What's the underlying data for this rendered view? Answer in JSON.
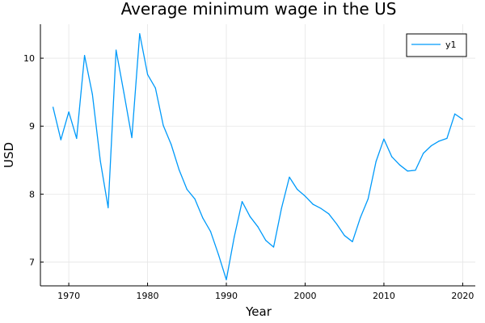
{
  "colors": {
    "series": "#009AFA",
    "grid": "#e6e6e6",
    "axis": "#000000",
    "background": "#ffffff"
  },
  "chart_data": {
    "type": "line",
    "title": "Average minimum wage in the US",
    "xlabel": "Year",
    "ylabel": "USD",
    "xlim": [
      1966.4,
      2021.6
    ],
    "ylim": [
      6.65,
      10.5
    ],
    "xticks": [
      1970,
      1980,
      1990,
      2000,
      2010,
      2020
    ],
    "yticks": [
      7,
      8,
      9,
      10
    ],
    "grid": true,
    "legend": "top-right",
    "series": [
      {
        "name": "y1",
        "x": [
          1968,
          1969,
          1970,
          1971,
          1972,
          1973,
          1974,
          1975,
          1976,
          1977,
          1978,
          1979,
          1980,
          1981,
          1982,
          1983,
          1984,
          1985,
          1986,
          1987,
          1988,
          1989,
          1990,
          1991,
          1992,
          1993,
          1994,
          1995,
          1996,
          1997,
          1998,
          1999,
          2000,
          2001,
          2002,
          2003,
          2004,
          2005,
          2006,
          2007,
          2008,
          2009,
          2010,
          2011,
          2012,
          2013,
          2014,
          2015,
          2016,
          2017,
          2018,
          2019,
          2020
        ],
        "y": [
          9.28,
          8.8,
          9.21,
          8.82,
          10.04,
          9.47,
          8.49,
          7.8,
          10.12,
          9.49,
          8.83,
          10.36,
          9.76,
          9.56,
          9.01,
          8.73,
          8.36,
          8.07,
          7.93,
          7.65,
          7.45,
          7.11,
          6.74,
          7.37,
          7.89,
          7.67,
          7.52,
          7.32,
          7.22,
          7.79,
          8.25,
          8.07,
          7.97,
          7.85,
          7.79,
          7.71,
          7.56,
          7.39,
          7.3,
          7.65,
          7.93,
          8.48,
          8.81,
          8.55,
          8.43,
          8.34,
          8.35,
          8.6,
          8.71,
          8.78,
          8.82,
          9.18,
          9.1
        ]
      }
    ]
  }
}
